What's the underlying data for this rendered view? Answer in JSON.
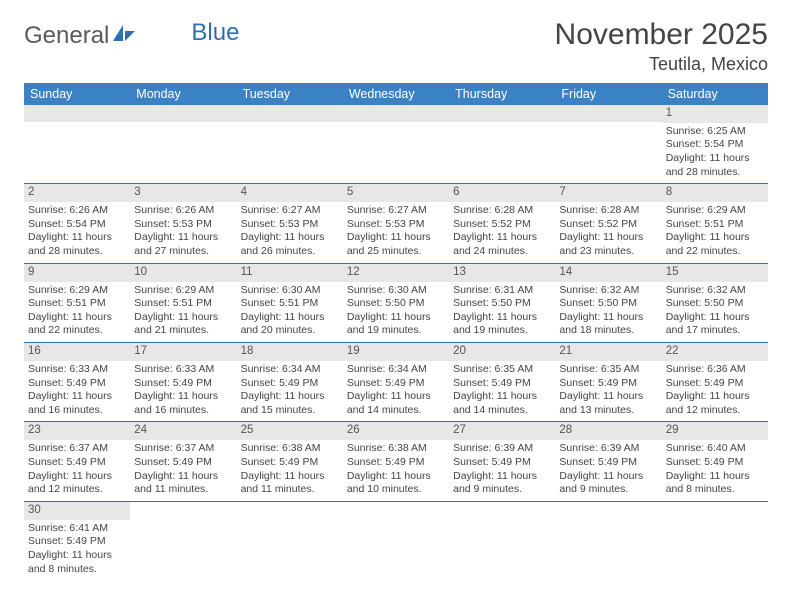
{
  "logo": {
    "text_general": "General",
    "text_blue": "Blue"
  },
  "header": {
    "month_title": "November 2025",
    "location": "Teutila, Mexico"
  },
  "colors": {
    "header_bg": "#3b82c4",
    "header_text": "#ffffff",
    "daynum_bg": "#e7e7e7",
    "border": "#2e6fb0",
    "logo_gray": "#5a5a5a",
    "logo_blue": "#2e6fb0"
  },
  "weekdays": [
    "Sunday",
    "Monday",
    "Tuesday",
    "Wednesday",
    "Thursday",
    "Friday",
    "Saturday"
  ],
  "first_weekday_index": 6,
  "days": [
    {
      "n": 1,
      "sunrise": "6:25 AM",
      "sunset": "5:54 PM",
      "dl_h": 11,
      "dl_m": 28
    },
    {
      "n": 2,
      "sunrise": "6:26 AM",
      "sunset": "5:54 PM",
      "dl_h": 11,
      "dl_m": 28
    },
    {
      "n": 3,
      "sunrise": "6:26 AM",
      "sunset": "5:53 PM",
      "dl_h": 11,
      "dl_m": 27
    },
    {
      "n": 4,
      "sunrise": "6:27 AM",
      "sunset": "5:53 PM",
      "dl_h": 11,
      "dl_m": 26
    },
    {
      "n": 5,
      "sunrise": "6:27 AM",
      "sunset": "5:53 PM",
      "dl_h": 11,
      "dl_m": 25
    },
    {
      "n": 6,
      "sunrise": "6:28 AM",
      "sunset": "5:52 PM",
      "dl_h": 11,
      "dl_m": 24
    },
    {
      "n": 7,
      "sunrise": "6:28 AM",
      "sunset": "5:52 PM",
      "dl_h": 11,
      "dl_m": 23
    },
    {
      "n": 8,
      "sunrise": "6:29 AM",
      "sunset": "5:51 PM",
      "dl_h": 11,
      "dl_m": 22
    },
    {
      "n": 9,
      "sunrise": "6:29 AM",
      "sunset": "5:51 PM",
      "dl_h": 11,
      "dl_m": 22
    },
    {
      "n": 10,
      "sunrise": "6:29 AM",
      "sunset": "5:51 PM",
      "dl_h": 11,
      "dl_m": 21
    },
    {
      "n": 11,
      "sunrise": "6:30 AM",
      "sunset": "5:51 PM",
      "dl_h": 11,
      "dl_m": 20
    },
    {
      "n": 12,
      "sunrise": "6:30 AM",
      "sunset": "5:50 PM",
      "dl_h": 11,
      "dl_m": 19
    },
    {
      "n": 13,
      "sunrise": "6:31 AM",
      "sunset": "5:50 PM",
      "dl_h": 11,
      "dl_m": 19
    },
    {
      "n": 14,
      "sunrise": "6:32 AM",
      "sunset": "5:50 PM",
      "dl_h": 11,
      "dl_m": 18
    },
    {
      "n": 15,
      "sunrise": "6:32 AM",
      "sunset": "5:50 PM",
      "dl_h": 11,
      "dl_m": 17
    },
    {
      "n": 16,
      "sunrise": "6:33 AM",
      "sunset": "5:49 PM",
      "dl_h": 11,
      "dl_m": 16
    },
    {
      "n": 17,
      "sunrise": "6:33 AM",
      "sunset": "5:49 PM",
      "dl_h": 11,
      "dl_m": 16
    },
    {
      "n": 18,
      "sunrise": "6:34 AM",
      "sunset": "5:49 PM",
      "dl_h": 11,
      "dl_m": 15
    },
    {
      "n": 19,
      "sunrise": "6:34 AM",
      "sunset": "5:49 PM",
      "dl_h": 11,
      "dl_m": 14
    },
    {
      "n": 20,
      "sunrise": "6:35 AM",
      "sunset": "5:49 PM",
      "dl_h": 11,
      "dl_m": 14
    },
    {
      "n": 21,
      "sunrise": "6:35 AM",
      "sunset": "5:49 PM",
      "dl_h": 11,
      "dl_m": 13
    },
    {
      "n": 22,
      "sunrise": "6:36 AM",
      "sunset": "5:49 PM",
      "dl_h": 11,
      "dl_m": 12
    },
    {
      "n": 23,
      "sunrise": "6:37 AM",
      "sunset": "5:49 PM",
      "dl_h": 11,
      "dl_m": 12
    },
    {
      "n": 24,
      "sunrise": "6:37 AM",
      "sunset": "5:49 PM",
      "dl_h": 11,
      "dl_m": 11
    },
    {
      "n": 25,
      "sunrise": "6:38 AM",
      "sunset": "5:49 PM",
      "dl_h": 11,
      "dl_m": 11
    },
    {
      "n": 26,
      "sunrise": "6:38 AM",
      "sunset": "5:49 PM",
      "dl_h": 11,
      "dl_m": 10
    },
    {
      "n": 27,
      "sunrise": "6:39 AM",
      "sunset": "5:49 PM",
      "dl_h": 11,
      "dl_m": 9
    },
    {
      "n": 28,
      "sunrise": "6:39 AM",
      "sunset": "5:49 PM",
      "dl_h": 11,
      "dl_m": 9
    },
    {
      "n": 29,
      "sunrise": "6:40 AM",
      "sunset": "5:49 PM",
      "dl_h": 11,
      "dl_m": 8
    },
    {
      "n": 30,
      "sunrise": "6:41 AM",
      "sunset": "5:49 PM",
      "dl_h": 11,
      "dl_m": 8
    }
  ],
  "labels": {
    "sunrise": "Sunrise:",
    "sunset": "Sunset:",
    "daylight": "Daylight:",
    "hours": "hours",
    "and": "and",
    "minutes": "minutes."
  }
}
